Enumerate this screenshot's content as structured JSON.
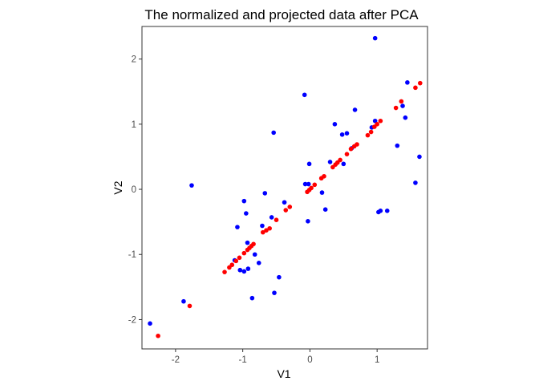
{
  "chart_data": {
    "type": "scatter",
    "title": "The normalized and projected data after PCA",
    "xlabel": "V1",
    "ylabel": "V2",
    "xlim": [
      -2.5,
      1.75
    ],
    "ylim": [
      -2.45,
      2.5
    ],
    "xticks": [
      -2,
      -1,
      0,
      1
    ],
    "yticks": [
      -2,
      -1,
      0,
      1,
      2
    ],
    "xtick_labels": [
      "-2",
      "-1",
      "0",
      "1"
    ],
    "ytick_labels": [
      "-2",
      "-1",
      "0",
      "1",
      "2"
    ],
    "grid": false,
    "legend": "none",
    "series": [
      {
        "color": "#0000ff",
        "points": [
          [
            -2.38,
            -2.06
          ],
          [
            -1.88,
            -1.72
          ],
          [
            -1.76,
            0.06
          ],
          [
            -1.12,
            -1.09
          ],
          [
            -1.08,
            -0.58
          ],
          [
            -1.04,
            -1.24
          ],
          [
            -0.98,
            -1.26
          ],
          [
            -0.98,
            -0.18
          ],
          [
            -0.95,
            -0.37
          ],
          [
            -0.93,
            -0.82
          ],
          [
            -0.92,
            -1.22
          ],
          [
            -0.86,
            -1.67
          ],
          [
            -0.82,
            -1.0
          ],
          [
            -0.76,
            -1.13
          ],
          [
            -0.71,
            -0.56
          ],
          [
            -0.67,
            -0.06
          ],
          [
            -0.57,
            -0.43
          ],
          [
            -0.54,
            0.87
          ],
          [
            -0.53,
            -1.59
          ],
          [
            -0.46,
            -1.35
          ],
          [
            -0.38,
            -0.2
          ],
          [
            -0.08,
            1.45
          ],
          [
            -0.07,
            0.08
          ],
          [
            -0.03,
            -0.49
          ],
          [
            -0.02,
            0.08
          ],
          [
            -0.01,
            0.39
          ],
          [
            0.18,
            -0.05
          ],
          [
            0.23,
            -0.31
          ],
          [
            0.3,
            0.42
          ],
          [
            0.37,
            1.0
          ],
          [
            0.48,
            0.84
          ],
          [
            0.5,
            0.39
          ],
          [
            0.55,
            0.86
          ],
          [
            0.67,
            1.22
          ],
          [
            0.62,
            0.63
          ],
          [
            0.92,
            0.95
          ],
          [
            0.97,
            2.32
          ],
          [
            0.97,
            1.05
          ],
          [
            1.02,
            -0.35
          ],
          [
            1.05,
            -0.33
          ],
          [
            1.15,
            -0.33
          ],
          [
            1.3,
            0.67
          ],
          [
            1.38,
            1.28
          ],
          [
            1.42,
            1.1
          ],
          [
            1.45,
            1.64
          ],
          [
            1.57,
            0.1
          ],
          [
            1.63,
            0.5
          ]
        ]
      },
      {
        "color": "#ff0000",
        "points": [
          [
            -2.26,
            -2.25
          ],
          [
            -1.79,
            -1.79
          ],
          [
            -1.27,
            -1.27
          ],
          [
            -1.2,
            -1.2
          ],
          [
            -1.16,
            -1.16
          ],
          [
            -1.1,
            -1.1
          ],
          [
            -1.05,
            -1.05
          ],
          [
            -0.98,
            -0.98
          ],
          [
            -0.93,
            -0.93
          ],
          [
            -0.9,
            -0.9
          ],
          [
            -0.87,
            -0.87
          ],
          [
            -0.84,
            -0.84
          ],
          [
            -0.7,
            -0.66
          ],
          [
            -0.65,
            -0.63
          ],
          [
            -0.6,
            -0.6
          ],
          [
            -0.5,
            -0.47
          ],
          [
            -0.36,
            -0.32
          ],
          [
            -0.3,
            -0.27
          ],
          [
            -0.04,
            -0.04
          ],
          [
            -0.01,
            -0.01
          ],
          [
            0.02,
            0.02
          ],
          [
            0.07,
            0.07
          ],
          [
            0.17,
            0.17
          ],
          [
            0.21,
            0.2
          ],
          [
            0.34,
            0.34
          ],
          [
            0.38,
            0.38
          ],
          [
            0.41,
            0.41
          ],
          [
            0.45,
            0.45
          ],
          [
            0.55,
            0.54
          ],
          [
            0.61,
            0.62
          ],
          [
            0.66,
            0.66
          ],
          [
            0.7,
            0.69
          ],
          [
            0.86,
            0.83
          ],
          [
            0.91,
            0.88
          ],
          [
            0.96,
            0.96
          ],
          [
            1.0,
            1.0
          ],
          [
            1.05,
            1.05
          ],
          [
            1.28,
            1.25
          ],
          [
            1.36,
            1.35
          ],
          [
            1.57,
            1.56
          ],
          [
            1.64,
            1.63
          ]
        ]
      }
    ]
  }
}
